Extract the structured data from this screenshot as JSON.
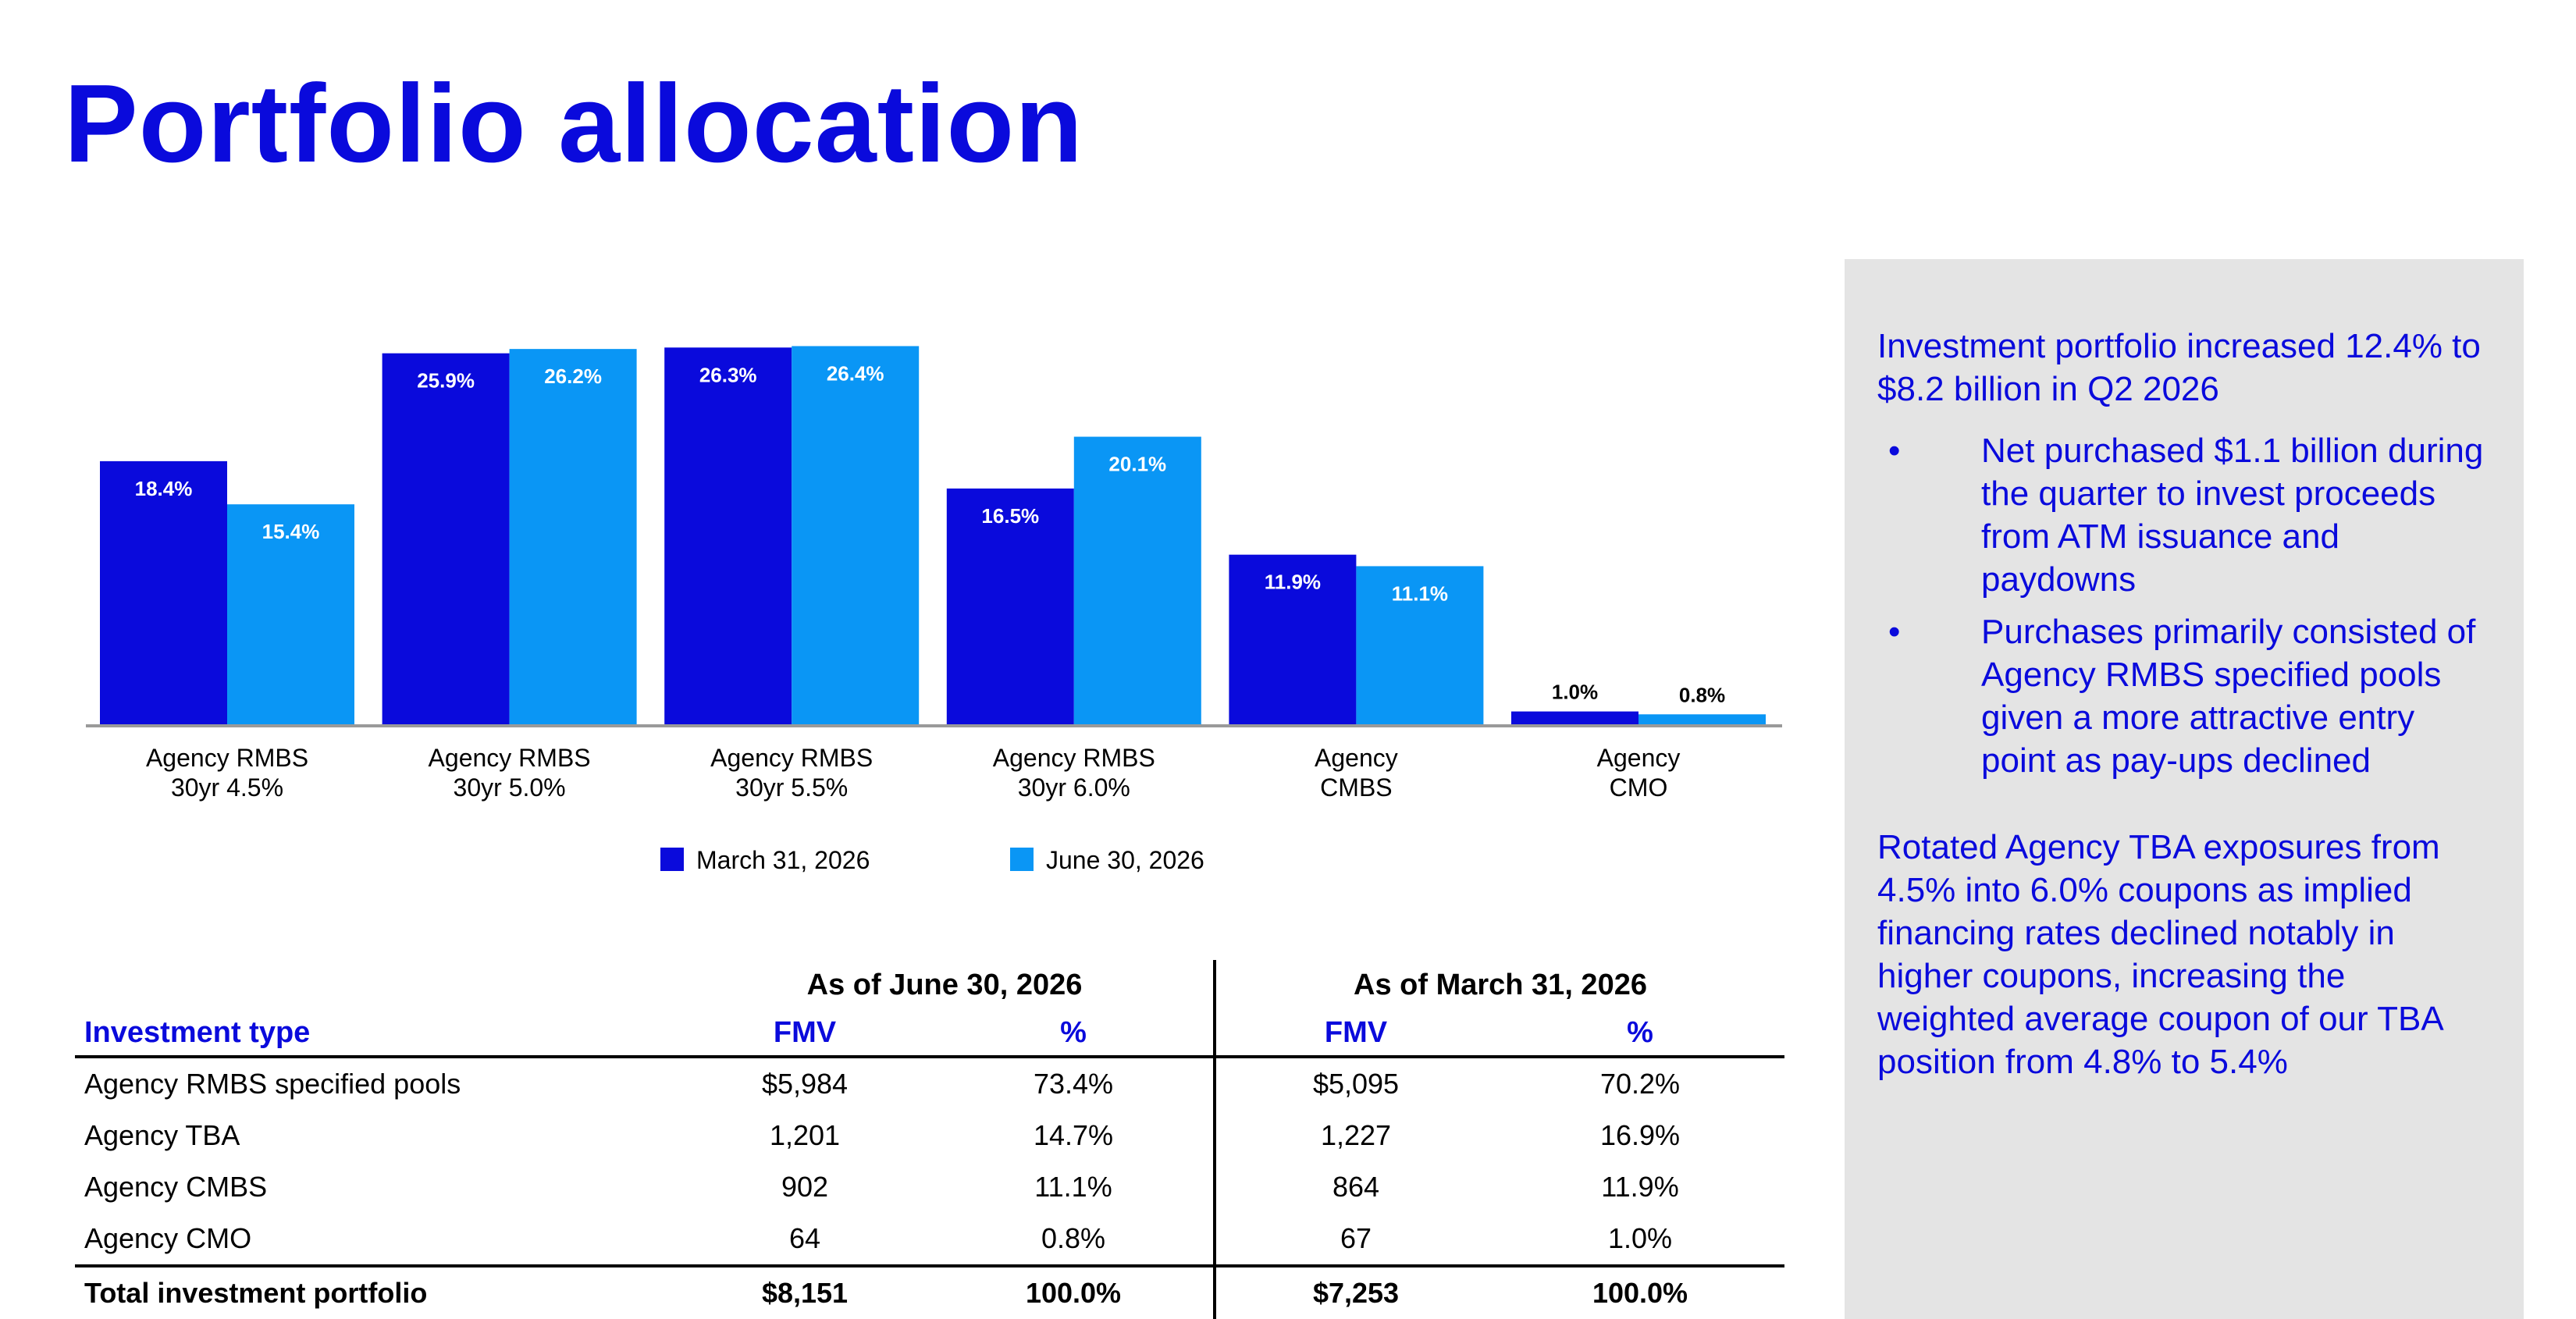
{
  "title": "Portfolio allocation",
  "chart_data": {
    "type": "bar",
    "categories": [
      [
        "Agency RMBS",
        "30yr 4.5%"
      ],
      [
        "Agency RMBS",
        "30yr 5.0%"
      ],
      [
        "Agency RMBS",
        "30yr 5.5%"
      ],
      [
        "Agency RMBS",
        "30yr 6.0%"
      ],
      [
        "Agency",
        "CMBS"
      ],
      [
        "Agency",
        "CMO"
      ]
    ],
    "series": [
      {
        "name": "March 31, 2026",
        "color": "#0a0adc",
        "values": [
          18.4,
          25.9,
          26.3,
          16.5,
          11.9,
          1.0
        ],
        "labels": [
          "18.4%",
          "25.9%",
          "26.3%",
          "16.5%",
          "11.9%",
          "1.0%"
        ]
      },
      {
        "name": "June 30, 2026",
        "color": "#0a96f5",
        "values": [
          15.4,
          26.2,
          26.4,
          20.1,
          11.1,
          0.8
        ],
        "labels": [
          "15.4%",
          "26.2%",
          "26.4%",
          "20.1%",
          "11.1%",
          "0.8%"
        ]
      }
    ],
    "ylim": [
      0,
      30
    ],
    "grid": false,
    "legend": "bottom",
    "xlabel": "",
    "ylabel": ""
  },
  "table": {
    "group_headers": [
      "As of June 30, 2026",
      "As of March 31, 2026"
    ],
    "col_headers": [
      "Investment type",
      "FMV",
      "%",
      "FMV",
      "%"
    ],
    "rows": [
      [
        "Agency RMBS specified pools",
        "$5,984",
        "73.4%",
        "$5,095",
        "70.2%"
      ],
      [
        "Agency TBA",
        "1,201",
        "14.7%",
        "1,227",
        "16.9%"
      ],
      [
        "Agency CMBS",
        "902",
        "11.1%",
        "864",
        "11.9%"
      ],
      [
        "Agency CMO",
        "64",
        "0.8%",
        "67",
        "1.0%"
      ]
    ],
    "total": [
      "Total investment portfolio",
      "$8,151",
      "100.0%",
      "$7,253",
      "100.0%"
    ]
  },
  "side_panel": {
    "headline": "Investment portfolio increased 12.4% to $8.2 billion in Q2 2026",
    "bullets": [
      "Net purchased $1.1 billion during the quarter to invest proceeds from ATM issuance and paydowns",
      "Purchases primarily consisted of Agency RMBS specified pools given a more attractive entry point as pay-ups declined"
    ],
    "bullet_char": "•",
    "paragraph": "Rotated Agency TBA exposures from 4.5% into 6.0% coupons as implied financing rates declined notably in higher coupons, increasing the weighted average coupon of our TBA position from 4.8% to 5.4%"
  },
  "colors": {
    "accent": "#0a0adc",
    "light": "#0a96f5",
    "panel": "#e4e4e4"
  }
}
